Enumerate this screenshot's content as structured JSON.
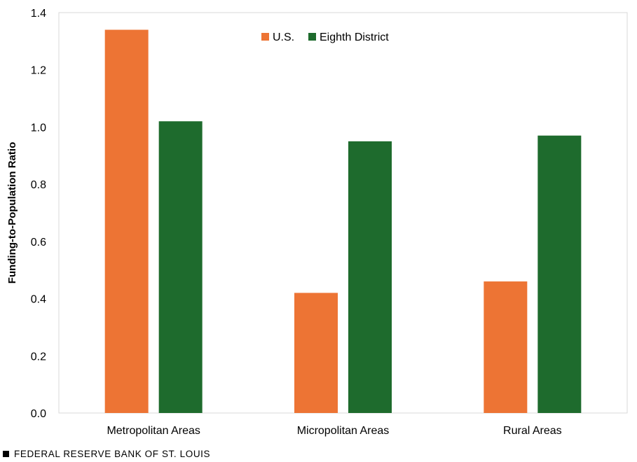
{
  "chart_data": {
    "type": "bar",
    "categories": [
      "Metropolitan Areas",
      "Micropolitan Areas",
      "Rural Areas"
    ],
    "series": [
      {
        "name": "U.S.",
        "color": "#ED7434",
        "values": [
          1.34,
          0.42,
          0.46
        ]
      },
      {
        "name": "Eighth District",
        "color": "#1E6B2D",
        "values": [
          1.02,
          0.95,
          0.97
        ]
      }
    ],
    "ylabel": "Funding-to-Population Ratio",
    "xlabel": "",
    "ylim": [
      0,
      1.4
    ],
    "yticks": [
      "0.0",
      "0.2",
      "0.4",
      "0.6",
      "0.8",
      "1.0",
      "1.2",
      "1.4"
    ],
    "legend_position": "top-center",
    "grid": false
  },
  "footer": {
    "source": "FEDERAL RESERVE BANK OF ST. LOUIS"
  }
}
